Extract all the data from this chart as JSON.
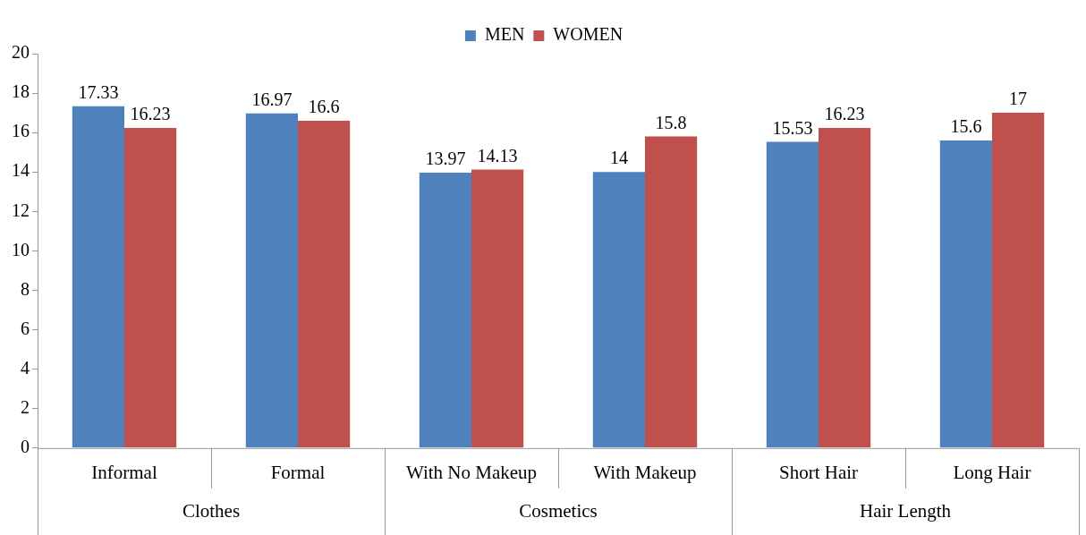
{
  "chart_data": {
    "type": "bar",
    "categories": [
      "Informal",
      "Formal",
      "With No Makeup",
      "With Makeup",
      "Short Hair",
      "Long Hair"
    ],
    "series": [
      {
        "name": "MEN",
        "color": "#4f81bd",
        "values": [
          17.33,
          16.97,
          13.97,
          14,
          15.53,
          15.6
        ]
      },
      {
        "name": "WOMEN",
        "color": "#c0504d",
        "values": [
          16.23,
          16.6,
          14.13,
          15.8,
          16.23,
          17
        ]
      }
    ],
    "ylim": [
      0,
      20
    ],
    "yticks": [
      0,
      2,
      4,
      6,
      8,
      10,
      12,
      14,
      16,
      18,
      20
    ],
    "grid": false,
    "legend": "top",
    "data_labels": true,
    "annotations": [
      "Clothes",
      "Cosmetics",
      "Hair Length"
    ]
  }
}
